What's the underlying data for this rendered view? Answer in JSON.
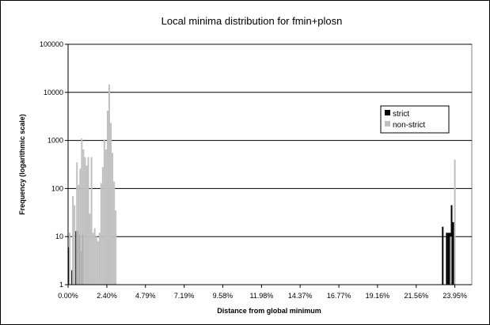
{
  "chart_data": {
    "type": "bar",
    "title": "Local minima distribution for fmin+plosn",
    "xlabel": "Distance from global minimum",
    "ylabel": "Frequency (logarithmic scale)",
    "y_scale": "log",
    "ylim": [
      1,
      100000
    ],
    "y_ticks": [
      "1",
      "10",
      "100",
      "1000",
      "10000",
      "100000"
    ],
    "xlim": [
      0.0,
      25.0
    ],
    "x_ticks": [
      "0.00%",
      "2.40%",
      "4.79%",
      "7.19%",
      "9.58%",
      "11.98%",
      "14.37%",
      "16.77%",
      "19.16%",
      "21.56%",
      "23.95%"
    ],
    "x_tick_values": [
      0.0,
      2.4,
      4.79,
      7.19,
      9.58,
      11.98,
      14.37,
      16.77,
      19.16,
      21.56,
      23.95
    ],
    "grid": "horizontal",
    "legend_position": "top-right",
    "colors": {
      "strict": "#000000",
      "non-strict": "#c0c0c0",
      "grid": "#000000",
      "background": "#ffffff"
    },
    "series": [
      {
        "name": "strict",
        "points": [
          {
            "x": 0.05,
            "y": 6
          },
          {
            "x": 0.25,
            "y": 2
          },
          {
            "x": 0.5,
            "y": 13
          },
          {
            "x": 0.6,
            "y": 13
          },
          {
            "x": 0.7,
            "y": 11
          },
          {
            "x": 0.8,
            "y": 5
          },
          {
            "x": 0.9,
            "y": 11
          },
          {
            "x": 23.2,
            "y": 16
          },
          {
            "x": 23.45,
            "y": 12
          },
          {
            "x": 23.55,
            "y": 12
          },
          {
            "x": 23.65,
            "y": 12
          },
          {
            "x": 23.75,
            "y": 45
          },
          {
            "x": 23.85,
            "y": 20
          }
        ]
      },
      {
        "name": "non-strict",
        "points": [
          {
            "x": 0.1,
            "y": 12
          },
          {
            "x": 0.3,
            "y": 70
          },
          {
            "x": 0.4,
            "y": 45
          },
          {
            "x": 0.55,
            "y": 350
          },
          {
            "x": 0.65,
            "y": 120
          },
          {
            "x": 0.75,
            "y": 260
          },
          {
            "x": 0.85,
            "y": 1100
          },
          {
            "x": 0.95,
            "y": 650
          },
          {
            "x": 1.05,
            "y": 450
          },
          {
            "x": 1.15,
            "y": 300
          },
          {
            "x": 1.25,
            "y": 450
          },
          {
            "x": 1.35,
            "y": 30
          },
          {
            "x": 1.45,
            "y": 450
          },
          {
            "x": 1.55,
            "y": 12
          },
          {
            "x": 1.65,
            "y": 15
          },
          {
            "x": 1.75,
            "y": 10
          },
          {
            "x": 1.85,
            "y": 8
          },
          {
            "x": 1.95,
            "y": 12
          },
          {
            "x": 2.05,
            "y": 130
          },
          {
            "x": 2.15,
            "y": 280
          },
          {
            "x": 2.25,
            "y": 1050
          },
          {
            "x": 2.35,
            "y": 650
          },
          {
            "x": 2.45,
            "y": 4200
          },
          {
            "x": 2.55,
            "y": 14500
          },
          {
            "x": 2.65,
            "y": 2300
          },
          {
            "x": 2.75,
            "y": 550
          },
          {
            "x": 2.85,
            "y": 140
          },
          {
            "x": 2.95,
            "y": 35
          },
          {
            "x": 23.7,
            "y": 10
          },
          {
            "x": 23.95,
            "y": 400
          }
        ]
      }
    ]
  }
}
